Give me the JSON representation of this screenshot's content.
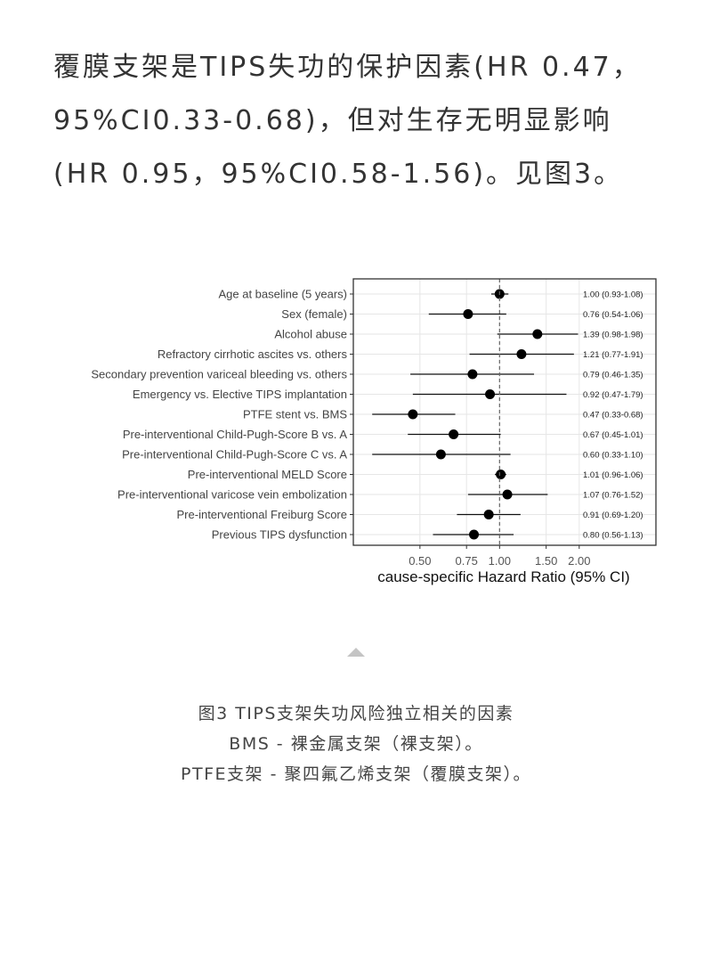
{
  "body_text": {
    "lines": [
      "覆膜支架是TIPS失功的保护因素(HR 0.47，",
      "95%CI0.33-0.68)，但对生存无明显影响",
      "(HR 0.95，95%CI0.58-1.56)。见图3。"
    ]
  },
  "chart_data": {
    "type": "forest",
    "xlabel": "cause-specific Hazard Ratio (95% CI)",
    "xscale": "log",
    "xlim": [
      0.28,
      3.9
    ],
    "reference_line": 1.0,
    "xticks": [
      0.5,
      0.75,
      1.0,
      1.5,
      2.0
    ],
    "xtick_labels": [
      "0.50",
      "0.75",
      "1.00",
      "1.50",
      "2.00"
    ],
    "grid": true,
    "rows": [
      {
        "label": "Age at baseline (5 years)",
        "hr": 1.0,
        "lo": 0.93,
        "hi": 1.08,
        "text": "1.00 (0.93-1.08)"
      },
      {
        "label": "Sex (female)",
        "hr": 0.76,
        "lo": 0.54,
        "hi": 1.06,
        "text": "0.76 (0.54-1.06)"
      },
      {
        "label": "Alcohol abuse",
        "hr": 1.39,
        "lo": 0.98,
        "hi": 1.98,
        "text": "1.39 (0.98-1.98)"
      },
      {
        "label": "Refractory cirrhotic ascites  vs. others",
        "hr": 1.21,
        "lo": 0.77,
        "hi": 1.91,
        "text": "1.21 (0.77-1.91)"
      },
      {
        "label": "Secondary prevention variceal bleeding  vs. others",
        "hr": 0.79,
        "lo": 0.46,
        "hi": 1.35,
        "text": "0.79 (0.46-1.35)"
      },
      {
        "label": "Emergency vs. Elective TIPS implantation",
        "hr": 0.92,
        "lo": 0.47,
        "hi": 1.79,
        "text": "0.92 (0.47-1.79)"
      },
      {
        "label": "PTFE stent vs. BMS",
        "hr": 0.47,
        "lo": 0.33,
        "hi": 0.68,
        "text": "0.47 (0.33-0.68)"
      },
      {
        "label": "Pre-interventional Child-Pugh-Score B vs. A",
        "hr": 0.67,
        "lo": 0.45,
        "hi": 1.01,
        "text": "0.67 (0.45-1.01)"
      },
      {
        "label": "Pre-interventional Child-Pugh-Score C vs. A",
        "hr": 0.6,
        "lo": 0.33,
        "hi": 1.1,
        "text": "0.60 (0.33-1.10)"
      },
      {
        "label": "Pre-interventional MELD Score",
        "hr": 1.01,
        "lo": 0.96,
        "hi": 1.06,
        "text": "1.01 (0.96-1.06)"
      },
      {
        "label": "Pre-interventional varicose vein embolization",
        "hr": 1.07,
        "lo": 0.76,
        "hi": 1.52,
        "text": "1.07 (0.76-1.52)"
      },
      {
        "label": "Pre-interventional Freiburg Score",
        "hr": 0.91,
        "lo": 0.69,
        "hi": 1.2,
        "text": "0.91 (0.69-1.20)"
      },
      {
        "label": "Previous TIPS dysfunction",
        "hr": 0.8,
        "lo": 0.56,
        "hi": 1.13,
        "text": "0.80 (0.56-1.13)"
      }
    ]
  },
  "caption": {
    "lines": [
      "图3 TIPS支架失功风险独立相关的因素",
      "BMS - 裸金属支架（裸支架）。",
      "PTFE支架 - 聚四氟乙烯支架（覆膜支架）。"
    ]
  },
  "colors": {
    "text": "#333333",
    "caption": "#444444",
    "marker": "#000000",
    "grid": "#e6e6e6"
  },
  "icons": {
    "caption_marker": "triangle-up-icon"
  }
}
